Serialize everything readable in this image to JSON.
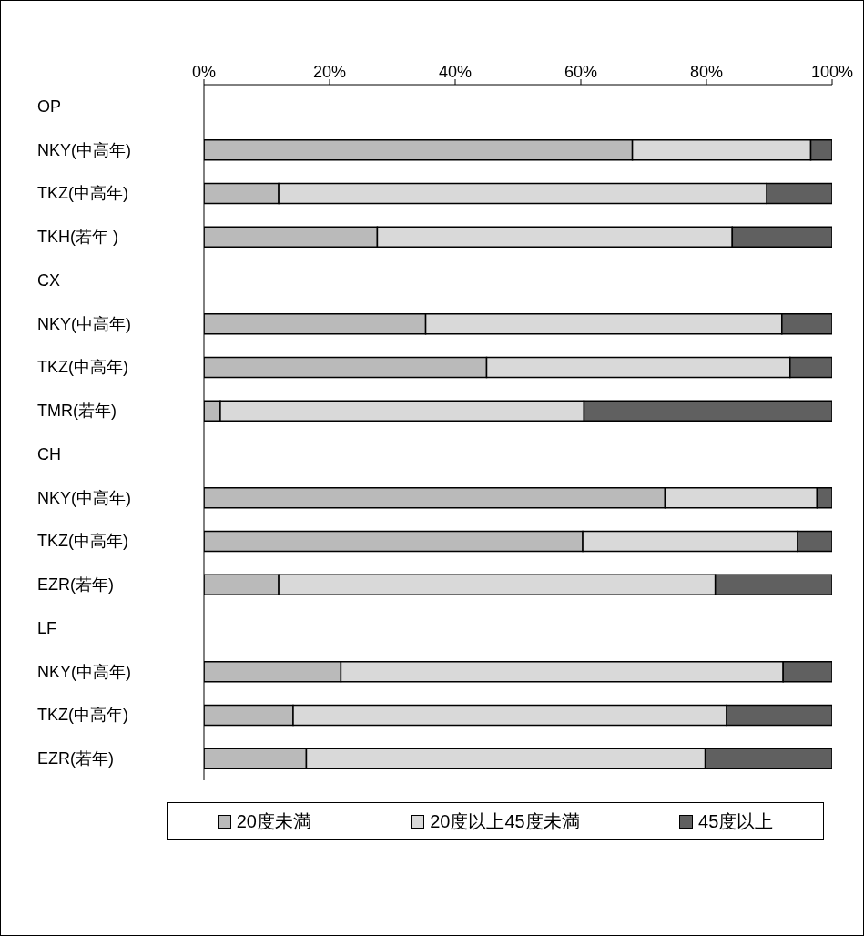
{
  "chart_data": {
    "type": "bar",
    "orientation": "horizontal",
    "stacked": true,
    "categories": [
      "OP",
      "NKY(中高年)",
      "TKZ(中高年)",
      "TKH(若年 )",
      "CX",
      "NKY(中高年)",
      "TKZ(中高年)",
      "TMR(若年)",
      "CH",
      "NKY(中高年)",
      "TKZ(中高年)",
      "EZR(若年)",
      "LF",
      "NKY(中高年)",
      "TKZ(中高年)",
      "EZR(若年)"
    ],
    "series": [
      {
        "name": "20度未満",
        "color": "#bababa",
        "values": [
          null,
          68.2,
          11.9,
          27.6,
          null,
          35.3,
          45.0,
          2.6,
          null,
          73.4,
          60.3,
          11.9,
          null,
          21.8,
          14.2,
          16.3
        ]
      },
      {
        "name": "20度以上45度未満",
        "color": "#d9d9d9",
        "values": [
          null,
          28.4,
          77.7,
          56.5,
          null,
          56.7,
          48.3,
          57.9,
          null,
          24.2,
          34.2,
          69.5,
          null,
          70.4,
          69.0,
          63.5
        ]
      },
      {
        "name": "45度以上",
        "color": "#606060",
        "values": [
          null,
          3.4,
          10.4,
          15.9,
          null,
          8.0,
          6.7,
          39.5,
          null,
          2.4,
          5.5,
          18.6,
          null,
          7.8,
          16.8,
          20.2
        ]
      }
    ],
    "xlim": [
      0,
      100
    ],
    "xticks": [
      {
        "value": 0,
        "label": "0%"
      },
      {
        "value": 20,
        "label": "20%"
      },
      {
        "value": 40,
        "label": "40%"
      },
      {
        "value": 60,
        "label": "60%"
      },
      {
        "value": 80,
        "label": "80%"
      },
      {
        "value": 100,
        "label": "100%"
      }
    ],
    "grid": false,
    "legend": "bottom"
  }
}
